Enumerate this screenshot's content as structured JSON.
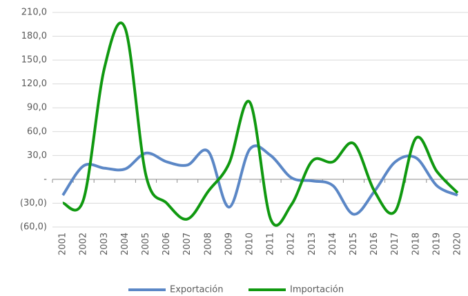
{
  "chart_data": {
    "type": "line",
    "categories": [
      "2001",
      "2002",
      "2003",
      "2004",
      "2005",
      "2006",
      "2007",
      "2008",
      "2009",
      "2010",
      "2011",
      "2012",
      "2013",
      "2014",
      "2015",
      "2016",
      "2017",
      "2018",
      "2019",
      "2020"
    ],
    "series": [
      {
        "name": "Exportación",
        "color": "#5b87c6",
        "values": [
          -20,
          17,
          14,
          13,
          33,
          22,
          18,
          35,
          -35,
          38,
          30,
          2,
          -2,
          -8,
          -44,
          -15,
          22,
          27,
          -8,
          -20
        ]
      },
      {
        "name": "Importación",
        "color": "#109910",
        "values": [
          -30,
          -25,
          140,
          190,
          5,
          -30,
          -50,
          -15,
          20,
          97,
          -50,
          -32,
          23,
          22,
          45,
          -15,
          -40,
          52,
          10,
          -17
        ]
      }
    ],
    "ylim": [
      -60,
      210
    ],
    "yticks": [
      {
        "value": -60,
        "label": "(60,0)"
      },
      {
        "value": -30,
        "label": "(30,0)"
      },
      {
        "value": 0,
        "label": "-"
      },
      {
        "value": 30,
        "label": "30,0"
      },
      {
        "value": 60,
        "label": "60,0"
      },
      {
        "value": 90,
        "label": "90,0"
      },
      {
        "value": 120,
        "label": "120,0"
      },
      {
        "value": 150,
        "label": "150,0"
      },
      {
        "value": 180,
        "label": "180,0"
      },
      {
        "value": 210,
        "label": "210,0"
      }
    ],
    "grid": true,
    "legend": "bottom"
  }
}
